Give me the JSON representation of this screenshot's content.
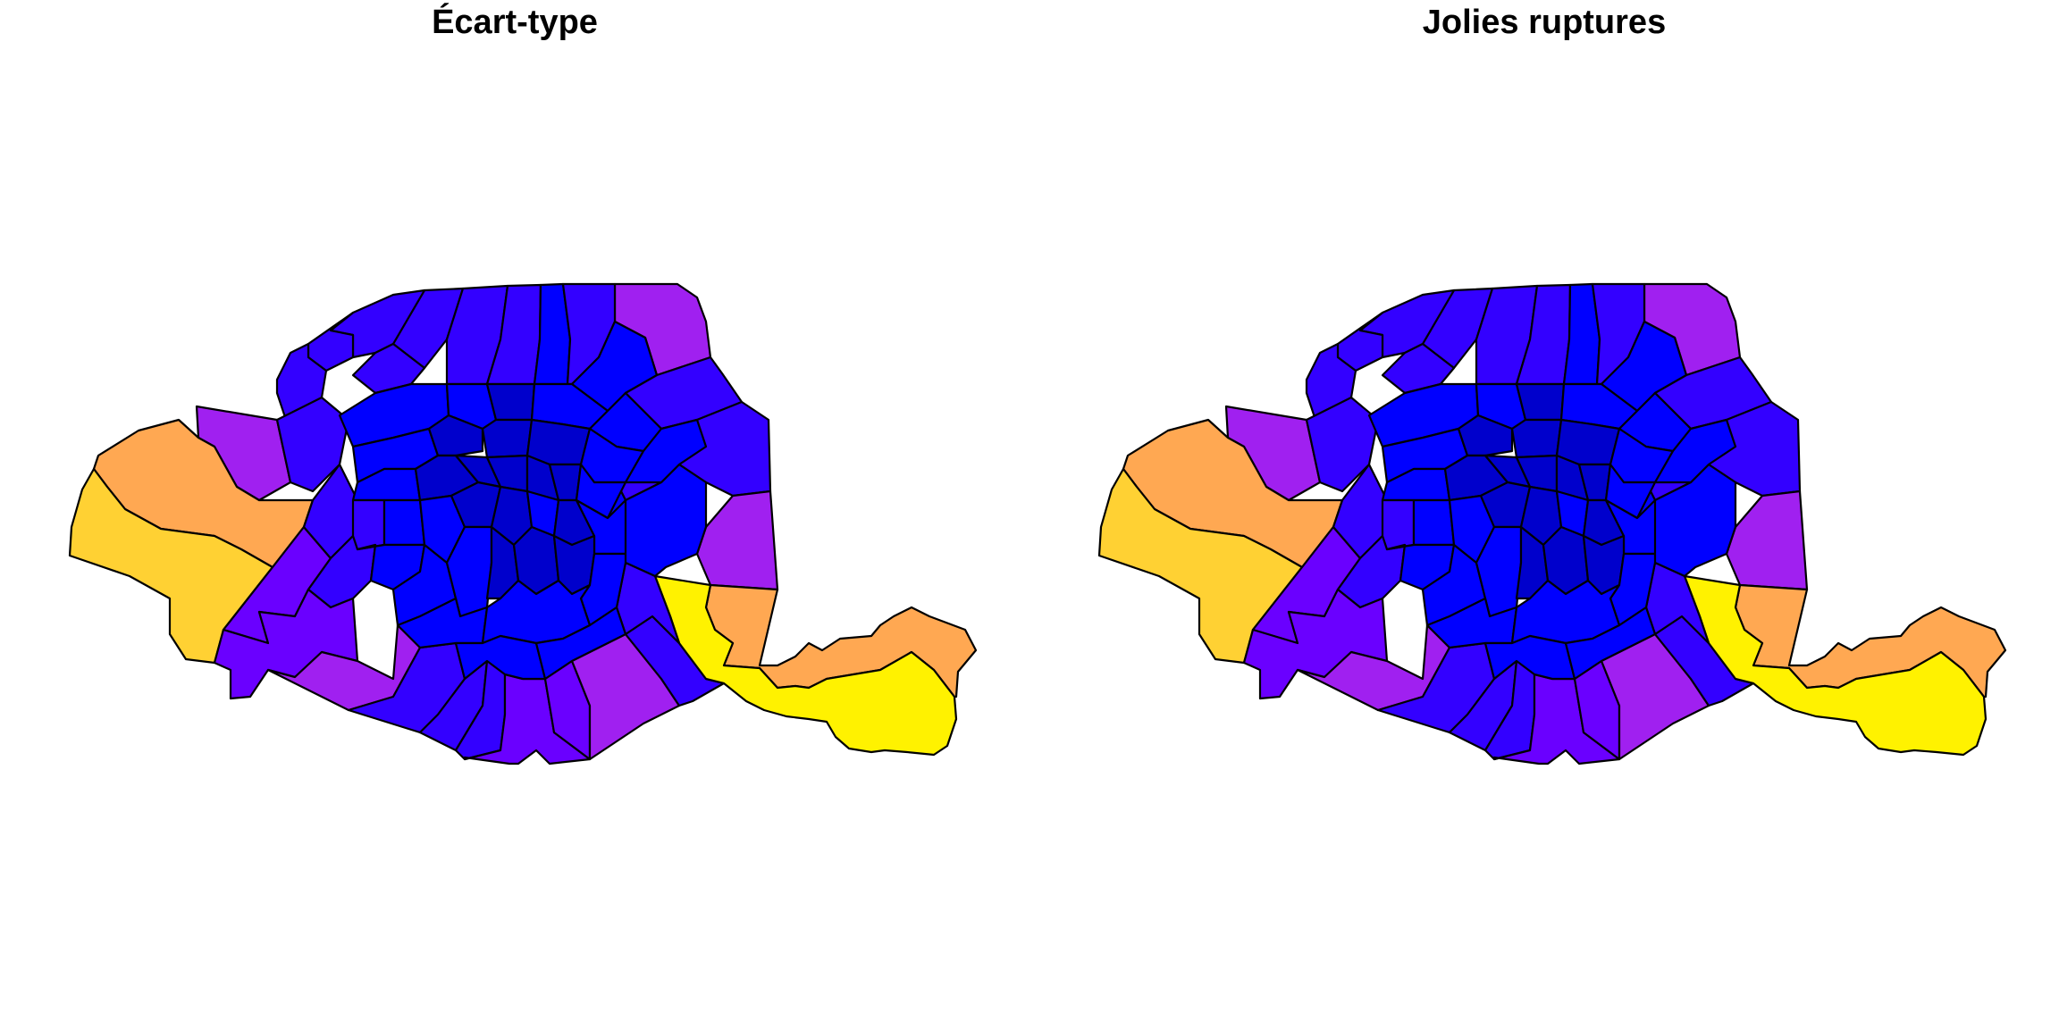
{
  "maps": [
    {
      "title": "Écart-type"
    },
    {
      "title": "Jolies ruptures"
    }
  ],
  "palette": {
    "navy": "#0000CC",
    "blue": "#0000FF",
    "indigo": "#3300FF",
    "violet": "#6A00FF",
    "purple": "#A020F0",
    "orange": "#FFA852",
    "gold": "#FFD133",
    "yellow": "#FFF200"
  }
}
